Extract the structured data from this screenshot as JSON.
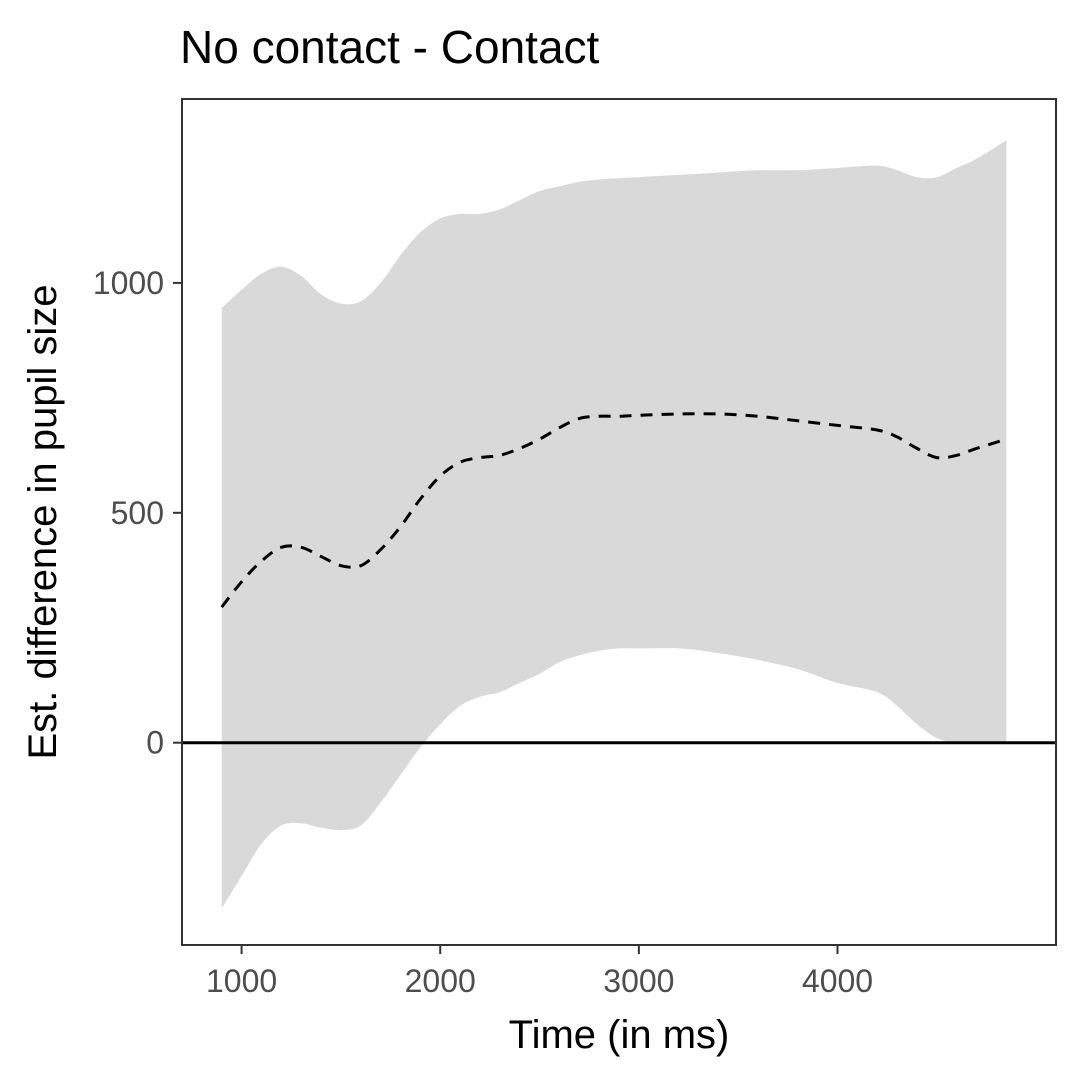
{
  "chart_data": {
    "type": "area",
    "title": "No contact - Contact",
    "xlabel": "Time (in ms)",
    "ylabel": "Est. difference in pupil size",
    "xlim": [
      700,
      5100
    ],
    "ylim": [
      -440,
      1400
    ],
    "x_ticks": [
      1000,
      2000,
      3000,
      4000
    ],
    "x_tick_labels": [
      "1000",
      "2000",
      "3000",
      "4000"
    ],
    "y_ticks": [
      0,
      500,
      1000
    ],
    "y_tick_labels": [
      "0",
      "500",
      "1000"
    ],
    "reference_line": {
      "y": 0,
      "color": "#000000"
    },
    "series": [
      {
        "style": "dashed",
        "color": "#000000",
        "x": [
          900,
          1000,
          1100,
          1200,
          1300,
          1400,
          1500,
          1600,
          1700,
          1800,
          1900,
          2000,
          2100,
          2200,
          2300,
          2400,
          2500,
          2600,
          2700,
          2800,
          2900,
          3000,
          3200,
          3400,
          3600,
          3800,
          4000,
          4200,
          4300,
          4400,
          4500,
          4600,
          4700,
          4850
        ],
        "y": [
          295,
          350,
          395,
          425,
          425,
          405,
          385,
          385,
          420,
          470,
          530,
          580,
          610,
          620,
          625,
          640,
          660,
          685,
          705,
          710,
          710,
          712,
          715,
          715,
          710,
          700,
          690,
          680,
          665,
          640,
          620,
          625,
          640,
          660
        ]
      }
    ],
    "band": {
      "color": "#d9d9d9",
      "x": [
        900,
        1000,
        1100,
        1200,
        1300,
        1400,
        1500,
        1600,
        1700,
        1800,
        1900,
        2000,
        2100,
        2200,
        2300,
        2400,
        2500,
        2600,
        2700,
        2800,
        2900,
        3000,
        3200,
        3400,
        3600,
        3800,
        4000,
        4200,
        4300,
        4400,
        4500,
        4600,
        4700,
        4850
      ],
      "lower": [
        -360,
        -290,
        -220,
        -180,
        -175,
        -185,
        -190,
        -180,
        -130,
        -70,
        -10,
        40,
        80,
        100,
        110,
        130,
        150,
        175,
        190,
        200,
        205,
        205,
        205,
        195,
        180,
        160,
        130,
        110,
        80,
        40,
        10,
        0,
        0,
        0
      ],
      "upper": [
        945,
        985,
        1020,
        1035,
        1015,
        975,
        955,
        960,
        1000,
        1060,
        1110,
        1140,
        1150,
        1150,
        1160,
        1180,
        1200,
        1210,
        1220,
        1225,
        1228,
        1230,
        1235,
        1240,
        1245,
        1245,
        1250,
        1255,
        1245,
        1230,
        1230,
        1250,
        1270,
        1310
      ]
    }
  }
}
